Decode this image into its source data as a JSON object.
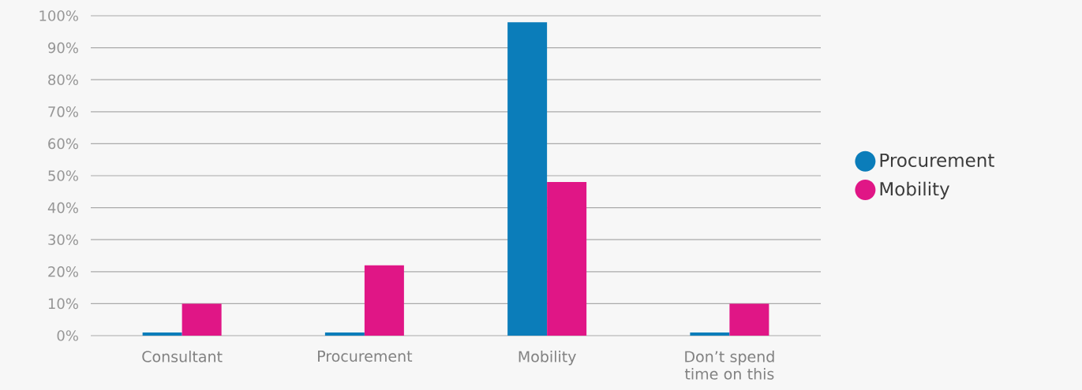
{
  "chart_data": {
    "type": "bar",
    "categories": [
      "Consultant",
      "Procurement",
      "Mobility",
      "Don’t spend time on this"
    ],
    "series": [
      {
        "name": "Procurement",
        "color": "#0b7dba",
        "values": [
          1,
          1,
          98,
          1
        ]
      },
      {
        "name": "Mobility",
        "color": "#e01686",
        "values": [
          10,
          22,
          48,
          10
        ]
      }
    ],
    "ylim": [
      0,
      100
    ],
    "yticks": [
      {
        "value": 0,
        "label": "0%"
      },
      {
        "value": 10,
        "label": "10%"
      },
      {
        "value": 20,
        "label": "20%"
      },
      {
        "value": 30,
        "label": "30%"
      },
      {
        "value": 40,
        "label": "40%"
      },
      {
        "value": 50,
        "label": "50%"
      },
      {
        "value": 60,
        "label": "60%"
      },
      {
        "value": 70,
        "label": "70%"
      },
      {
        "value": 80,
        "label": "80%"
      },
      {
        "value": 90,
        "label": "90%"
      },
      {
        "value": 100,
        "label": "100%"
      }
    ],
    "grid": "y",
    "legend": "right"
  }
}
